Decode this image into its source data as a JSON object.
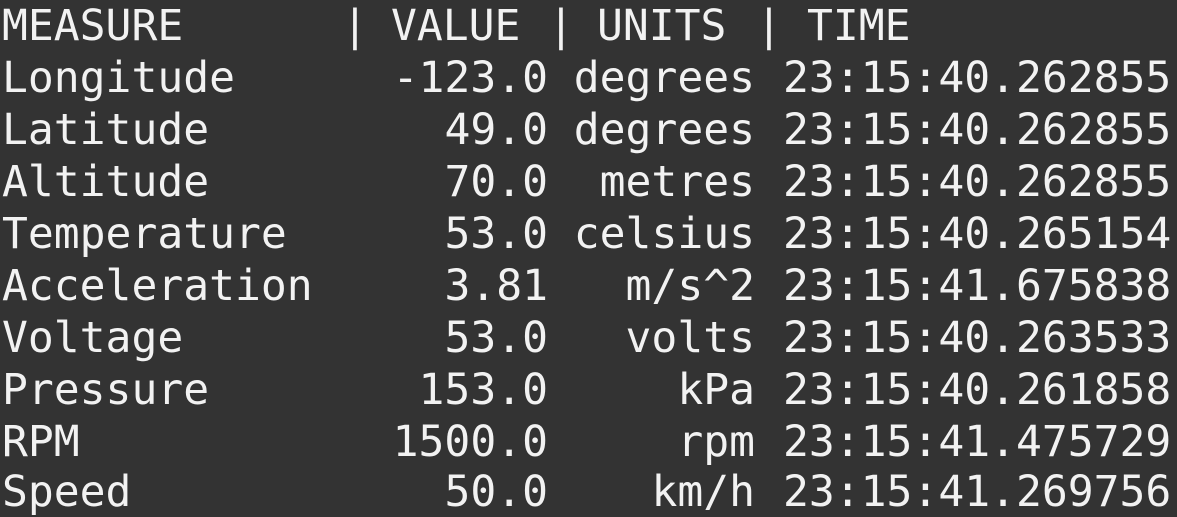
{
  "header": {
    "measure": "MEASURE",
    "separator": "|",
    "value": "VALUE",
    "units": "UNITS",
    "time": "TIME"
  },
  "rows": [
    {
      "measure": "Longitude",
      "value": "-123.0",
      "units": "degrees",
      "time": "23:15:40.262855"
    },
    {
      "measure": "Latitude",
      "value": "49.0",
      "units": "degrees",
      "time": "23:15:40.262855"
    },
    {
      "measure": "Altitude",
      "value": "70.0",
      "units": "metres",
      "time": "23:15:40.262855"
    },
    {
      "measure": "Temperature",
      "value": "53.0",
      "units": "celsius",
      "time": "23:15:40.265154"
    },
    {
      "measure": "Acceleration",
      "value": "3.81",
      "units": "m/s^2",
      "time": "23:15:41.675838"
    },
    {
      "measure": "Voltage",
      "value": "53.0",
      "units": "volts",
      "time": "23:15:40.263533"
    },
    {
      "measure": "Pressure",
      "value": "153.0",
      "units": "kPa",
      "time": "23:15:40.261858"
    },
    {
      "measure": "RPM",
      "value": "1500.0",
      "units": "rpm",
      "time": "23:15:41.475729"
    },
    {
      "measure": "Speed",
      "value": "50.0",
      "units": "km/h",
      "time": "23:15:41.269756"
    }
  ],
  "colors": {
    "background": "#333333",
    "text": "#f2f2f2"
  }
}
